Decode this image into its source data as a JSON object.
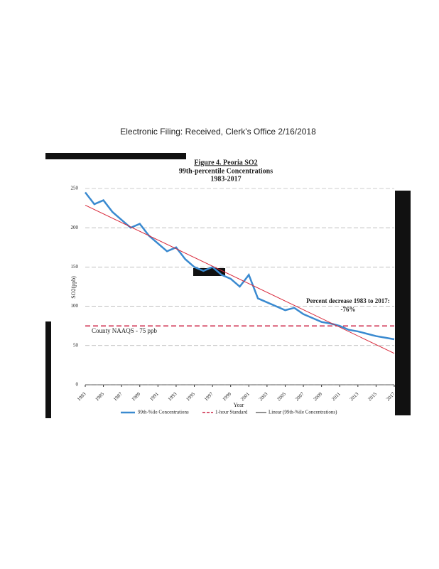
{
  "stamp": "Electronic Filing: Received, Clerk's Office 2/16/2018",
  "chart_data": {
    "type": "line",
    "title": "Figure 4.  Peoria SO2",
    "subtitle": "99th-percentile Concentrations",
    "period": "1983-2017",
    "x_label": "Year",
    "y_label": "SO2(ppb)",
    "x": [
      1983,
      1984,
      1985,
      1986,
      1987,
      1988,
      1989,
      1990,
      1991,
      1992,
      1993,
      1994,
      1995,
      1996,
      1997,
      1998,
      1999,
      2000,
      2001,
      2002,
      2003,
      2004,
      2005,
      2006,
      2007,
      2008,
      2009,
      2010,
      2011,
      2012,
      2013,
      2014,
      2015,
      2016,
      2017
    ],
    "series": [
      {
        "name": "99th-%ile Concentrations",
        "color": "#3a8ad0",
        "values": [
          245,
          230,
          235,
          220,
          210,
          200,
          205,
          190,
          180,
          170,
          175,
          160,
          150,
          145,
          150,
          140,
          135,
          125,
          140,
          110,
          105,
          100,
          95,
          98,
          90,
          85,
          80,
          78,
          75,
          70,
          68,
          65,
          62,
          60,
          58
        ]
      }
    ],
    "standard": {
      "name": "1-hour Standard",
      "value": 75,
      "color": "#cc2244"
    },
    "trendline": {
      "name": "Linear (99th-%ile Concentrations)",
      "color": "#d8283a"
    },
    "annotations": [
      "Percent decrease 1983 to 2017:",
      "-76%",
      "County NAAQS - 75 ppb"
    ],
    "xlim": [
      1983,
      2017
    ],
    "xticks": [
      1983,
      1985,
      1987,
      1989,
      1991,
      1993,
      1995,
      1997,
      1999,
      2001,
      2003,
      2005,
      2007,
      2009,
      2011,
      2013,
      2015,
      2017
    ],
    "ylim": [
      0,
      250
    ],
    "yticks": [
      0,
      50,
      100,
      150,
      200,
      250
    ],
    "grid": true
  }
}
